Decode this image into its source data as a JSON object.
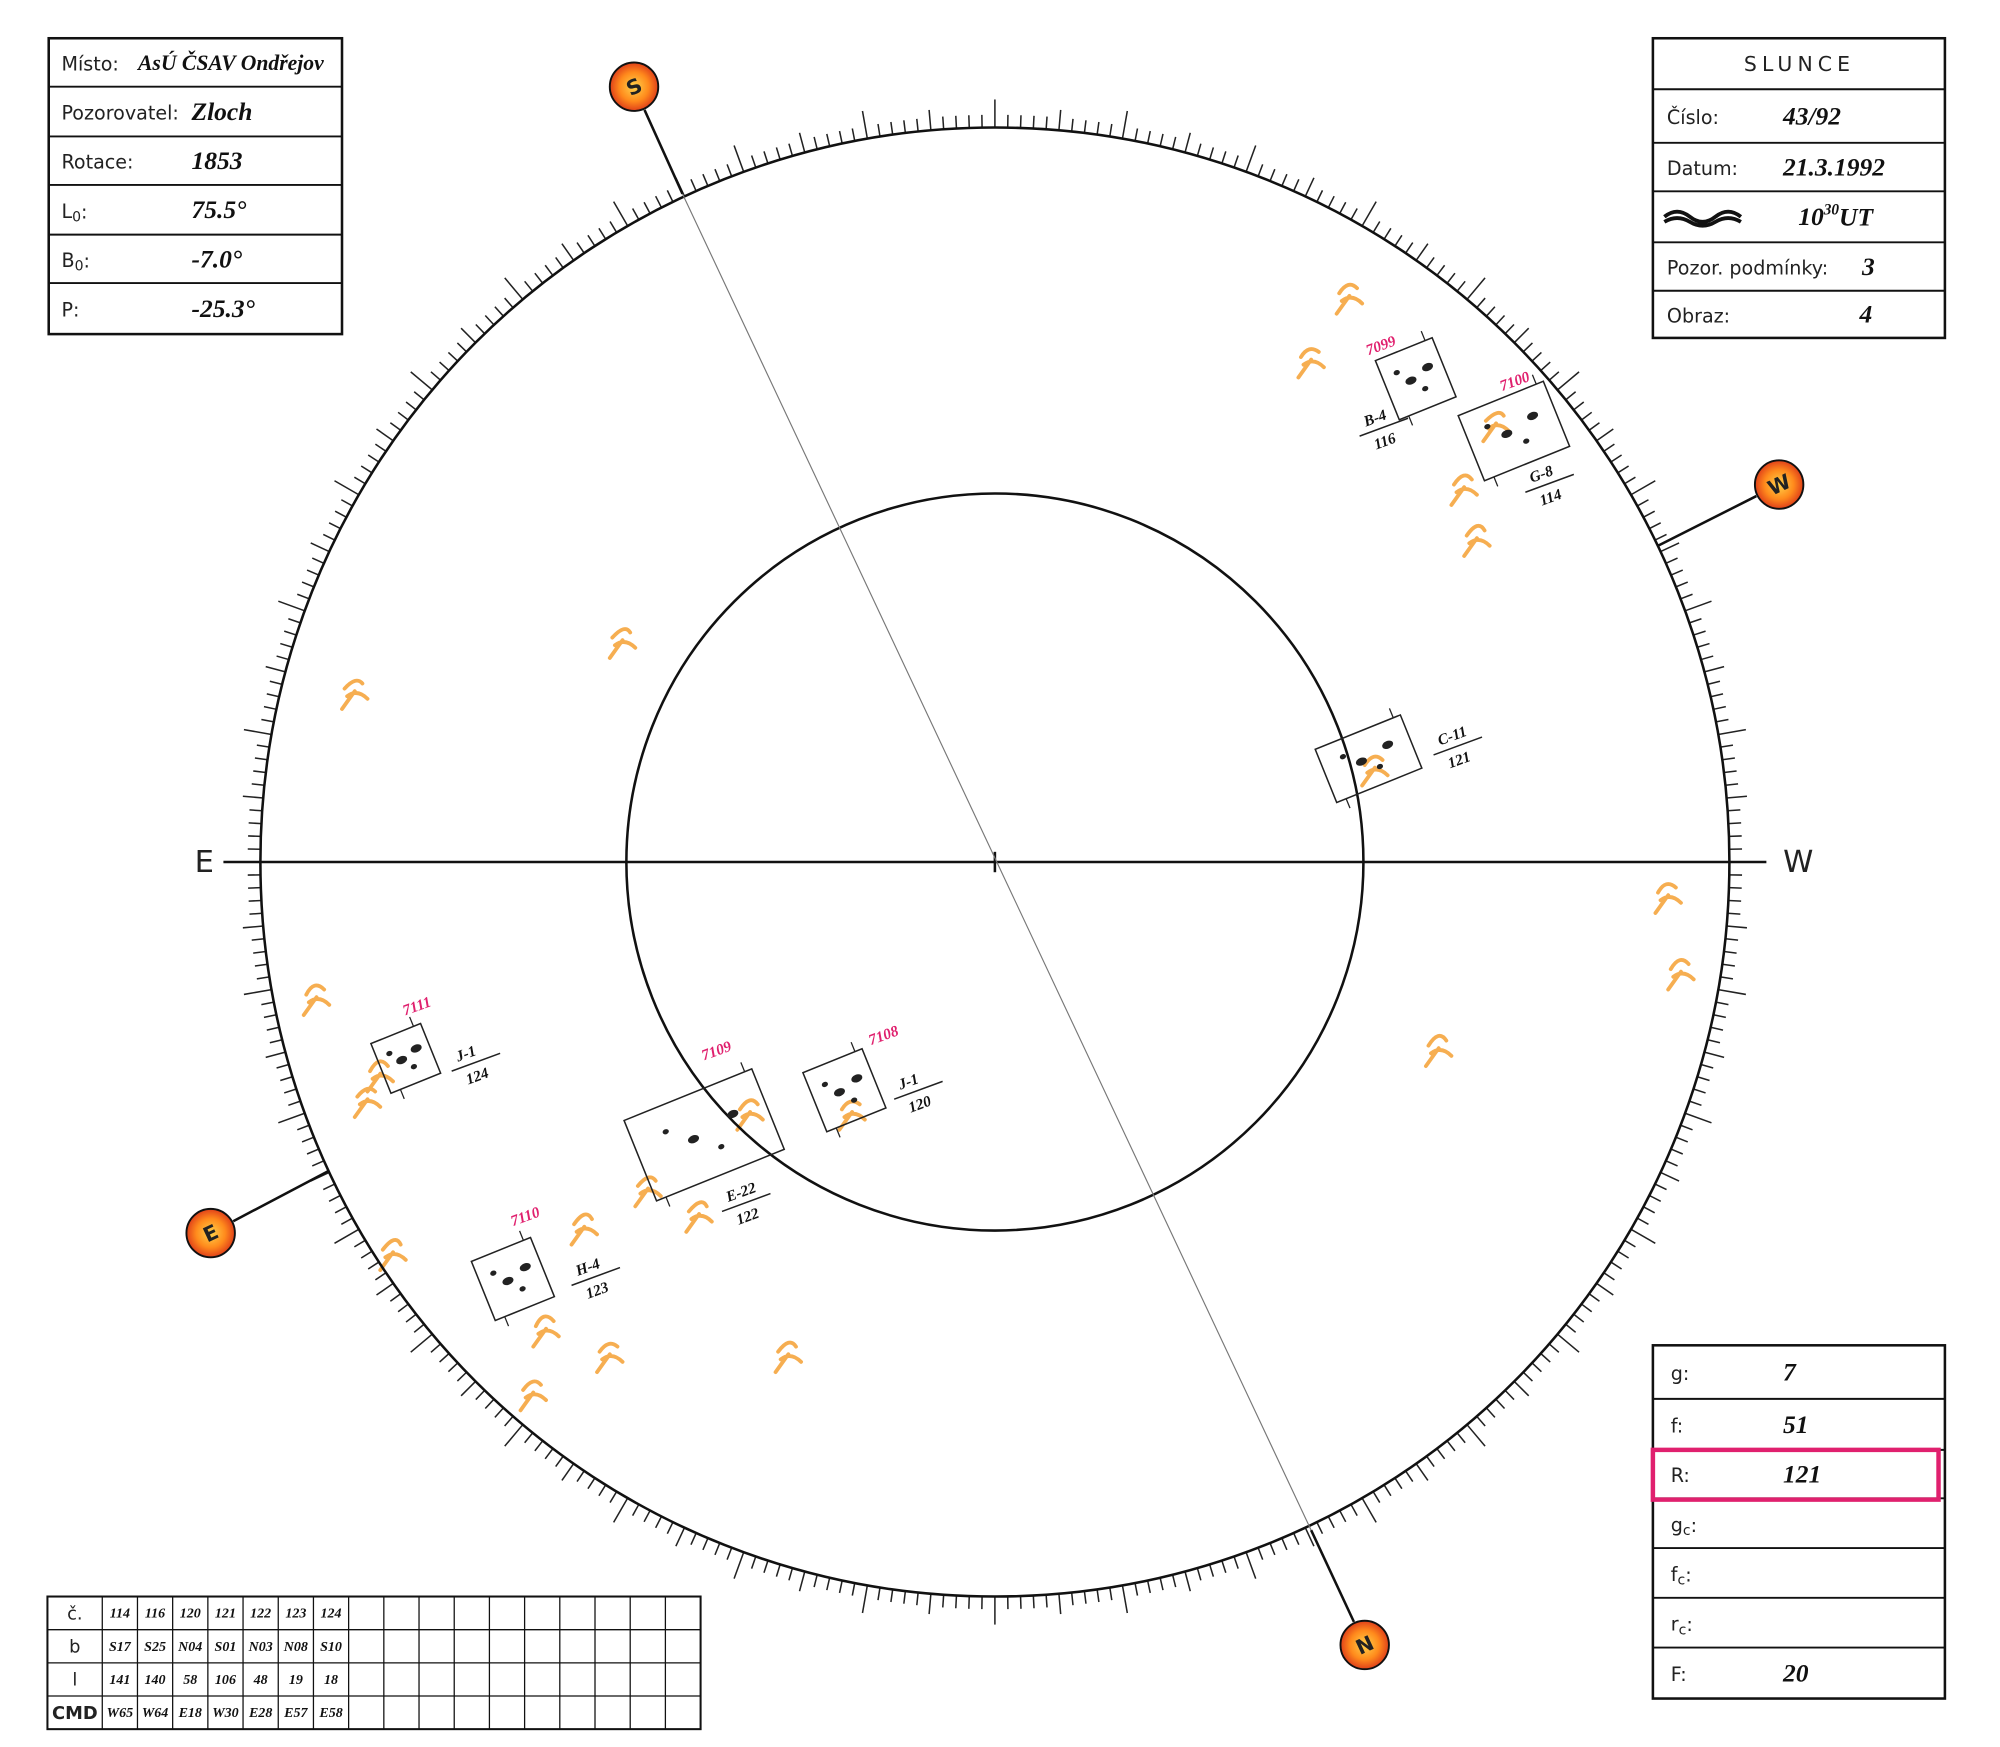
{
  "left_box": {
    "rows": [
      {
        "label": "Místo:",
        "value": "AsÚ ČSAV Ondřejov"
      },
      {
        "label": "Pozorovatel:",
        "value": "Zloch"
      },
      {
        "label": "Rotace:",
        "value": "1853"
      },
      {
        "label": "L",
        "sub": "0",
        "colon": ":",
        "value": "75.5°"
      },
      {
        "label": "B",
        "sub": "0",
        "colon": ":",
        "value": "-7.0°"
      },
      {
        "label": "P:",
        "value": "-25.3°"
      }
    ]
  },
  "right_box": {
    "title": "SLUNCE",
    "rows": [
      {
        "label": "Číslo:",
        "value": "43/92"
      },
      {
        "label": "Datum:",
        "value": "21.3.1992"
      },
      {
        "value": "10",
        "sup": "30",
        "unit": "UT"
      },
      {
        "label": "Pozor. podmínky:",
        "value": "3"
      },
      {
        "label": "Obraz:",
        "value": "4"
      }
    ]
  },
  "counts_box": {
    "rows": [
      {
        "label": "g:",
        "value": "7"
      },
      {
        "label": "f:",
        "value": "51"
      },
      {
        "label": "R:",
        "value": "121"
      },
      {
        "label": "g",
        "sub": "c",
        "colon": ":"
      },
      {
        "label": "f",
        "sub": "c",
        "colon": ":"
      },
      {
        "label": "r",
        "sub": "c",
        "colon": ":"
      },
      {
        "label": "F:",
        "value": "20"
      }
    ]
  },
  "table": {
    "rows": [
      [
        "č.",
        "114",
        "116",
        "120",
        "121",
        "122",
        "123",
        "124"
      ],
      [
        "b",
        "S17",
        "S25",
        "N04",
        "S01",
        "N03",
        "N08",
        "S10"
      ],
      [
        "l",
        "141",
        "140",
        "58",
        "106",
        "48",
        "19",
        "18"
      ],
      [
        "CMD",
        "W65",
        "W64",
        "E18",
        "W30",
        "E28",
        "E57",
        "E58"
      ]
    ]
  },
  "compass": [
    "S",
    "W",
    "N",
    "E"
  ],
  "axis_labels": [
    "E",
    "W"
  ],
  "sunspot_groups": [
    {
      "number": "7099",
      "type": "B-4",
      "id": "116"
    },
    {
      "number": "7100",
      "type": "G-8",
      "id": "114"
    },
    {
      "type": "C-11",
      "id": "121"
    },
    {
      "number": "7111",
      "type": "J-1",
      "id": "124"
    },
    {
      "number": "7109",
      "type": "E-22",
      "id": "122"
    },
    {
      "number": "7108",
      "type": "J-1",
      "id": "120"
    },
    {
      "number": "7110",
      "type": "H-4",
      "id": "123"
    }
  ]
}
